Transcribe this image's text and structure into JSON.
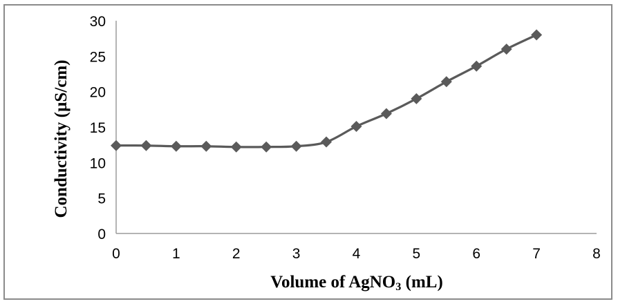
{
  "chart_data": {
    "type": "line",
    "title": "",
    "xlabel": "Volume of AgNO3 (mL)",
    "xlabel_parts": {
      "prefix": "Volume of AgNO",
      "subscript": "3",
      "suffix": " (mL)"
    },
    "ylabel": "Conductivity (µS/cm)",
    "x": [
      0,
      0.5,
      1,
      1.5,
      2,
      2.5,
      3,
      3.5,
      4,
      4.5,
      5,
      5.5,
      6,
      6.5,
      7
    ],
    "y": [
      12.4,
      12.4,
      12.3,
      12.3,
      12.2,
      12.2,
      12.3,
      12.9,
      15.1,
      16.9,
      19.0,
      21.4,
      23.6,
      26.0,
      28.0
    ],
    "xlim": [
      0,
      8
    ],
    "ylim": [
      0,
      30
    ],
    "x_ticks": [
      0,
      1,
      2,
      3,
      4,
      5,
      6,
      7,
      8
    ],
    "y_ticks": [
      0,
      5,
      10,
      15,
      20,
      25,
      30
    ],
    "grid": false,
    "legend": "none",
    "marker": "diamond",
    "smooth": true
  },
  "style": {
    "series_color": "#5a5a5a",
    "axis_color": "#9b9b9b",
    "text_color": "#000000",
    "border_color": "#8a8a8a",
    "background": "#ffffff"
  }
}
